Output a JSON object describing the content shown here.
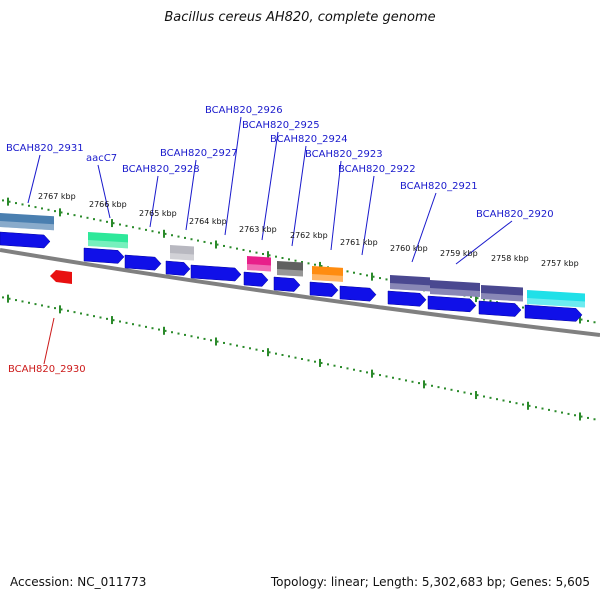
{
  "title": "Bacillus cereus AH820, complete genome",
  "footer": {
    "accession": "Accession: NC_011773",
    "summary": "Topology: linear; Length: 5,302,683 bp; Genes: 5,605"
  },
  "colors": {
    "cds_arrow": "#1010e8",
    "forward_label": "#1a1acc",
    "reverse_label": "#cc1a1a",
    "tick_mark": "#2a8a2a",
    "backbone": "#808080"
  },
  "ticks": [
    "2767 kbp",
    "2766 kbp",
    "2765 kbp",
    "2764 kbp",
    "2763 kbp",
    "2762 kbp",
    "2761 kbp",
    "2760 kbp",
    "2759 kbp",
    "2758 kbp",
    "2757 kbp"
  ],
  "labels": [
    {
      "text": "BCAH820_2931",
      "strand": "forward"
    },
    {
      "text": "aacC7",
      "strand": "forward"
    },
    {
      "text": "BCAH820_2928",
      "strand": "forward"
    },
    {
      "text": "BCAH820_2927",
      "strand": "forward"
    },
    {
      "text": "BCAH820_2926",
      "strand": "forward"
    },
    {
      "text": "BCAH820_2925",
      "strand": "forward"
    },
    {
      "text": "BCAH820_2924",
      "strand": "forward"
    },
    {
      "text": "BCAH820_2923",
      "strand": "forward"
    },
    {
      "text": "BCAH820_2922",
      "strand": "forward"
    },
    {
      "text": "BCAH820_2921",
      "strand": "forward"
    },
    {
      "text": "BCAH820_2920",
      "strand": "forward"
    },
    {
      "text": "BCAH820_2930",
      "strand": "reverse"
    }
  ],
  "feature_colors": [
    "#4a7fb0",
    "#2ee89a",
    "#b8b8c0",
    "#e8208a",
    "#606060",
    "#ff8c10",
    "#4a4890",
    "#4a4890",
    "#4a4890",
    "#20e0e8",
    "#e81010"
  ]
}
